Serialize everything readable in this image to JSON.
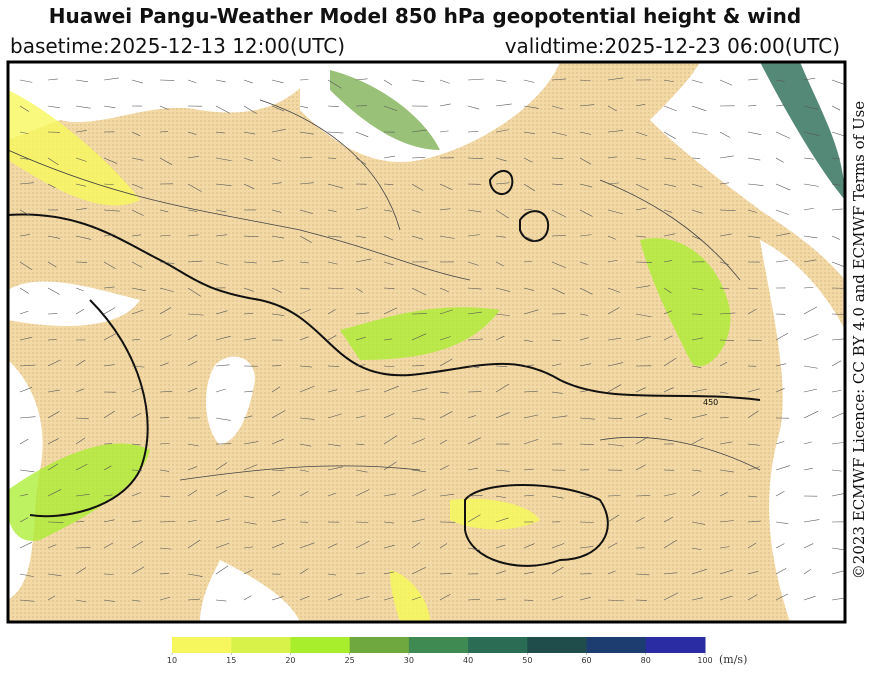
{
  "header": {
    "title": "Huawei Pangu-Weather Model 850 hPa geopotential height & wind",
    "basetime": "basetime:2025-12-13 12:00(UTC)",
    "validtime": "validtime:2025-12-23 06:00(UTC)"
  },
  "map": {
    "contour_label": "450"
  },
  "colorbar": {
    "ticks": [
      10,
      15,
      20,
      25,
      30,
      40,
      50,
      60,
      80,
      100
    ],
    "colors": [
      "#f6f75c",
      "#d9f24a",
      "#a8ee2c",
      "#6ea83e",
      "#3f8a52",
      "#2b6c55",
      "#1f4d4c",
      "#1d3d70",
      "#2a2ca4"
    ],
    "unit": "(m/s)"
  },
  "attribution": "©2023 ECMWF Licence: CC BY 4.0 and ECMWF Terms of Use"
}
